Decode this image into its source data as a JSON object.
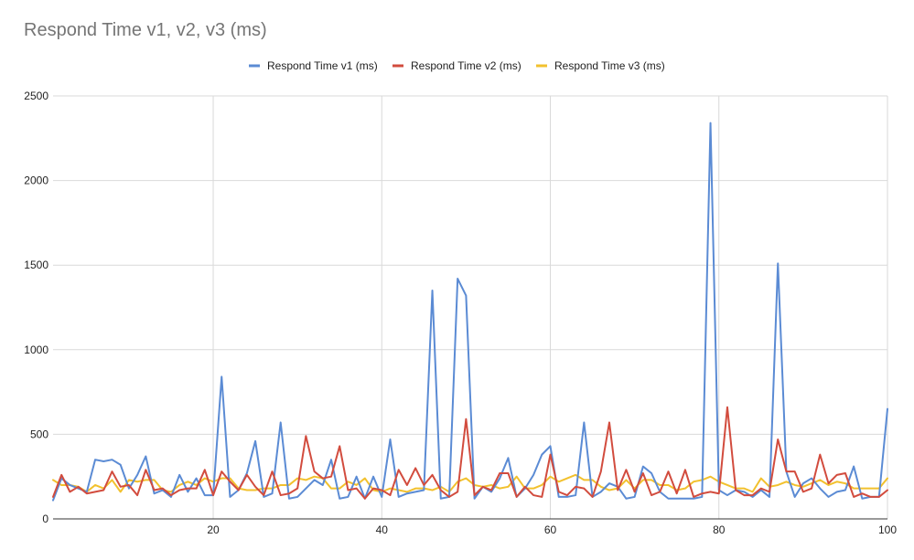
{
  "colors": {
    "v1": "#5b8bd4",
    "v2": "#d24c3e",
    "v3": "#f2c12e",
    "grid": "#d9d9d9",
    "axis": "#333333"
  },
  "chart_data": {
    "type": "line",
    "title": "Respond Time v1, v2, v3 (ms)",
    "xlabel": "",
    "ylabel": "",
    "xlim": [
      1,
      100
    ],
    "ylim": [
      0,
      2500
    ],
    "x_ticks": [
      "20",
      "40",
      "60",
      "80",
      "100"
    ],
    "x_tick_values": [
      20,
      40,
      60,
      80,
      100
    ],
    "y_ticks": [
      "0",
      "500",
      "1000",
      "1500",
      "2000",
      "2500"
    ],
    "y_tick_values": [
      0,
      500,
      1000,
      1500,
      2000,
      2500
    ],
    "legend_position": "top",
    "grid": true,
    "x": [
      1,
      2,
      3,
      4,
      5,
      6,
      7,
      8,
      9,
      10,
      11,
      12,
      13,
      14,
      15,
      16,
      17,
      18,
      19,
      20,
      21,
      22,
      23,
      24,
      25,
      26,
      27,
      28,
      29,
      30,
      31,
      32,
      33,
      34,
      35,
      36,
      37,
      38,
      39,
      40,
      41,
      42,
      43,
      44,
      45,
      46,
      47,
      48,
      49,
      50,
      51,
      52,
      53,
      54,
      55,
      56,
      57,
      58,
      59,
      60,
      61,
      62,
      63,
      64,
      65,
      66,
      67,
      68,
      69,
      70,
      71,
      72,
      73,
      74,
      75,
      76,
      77,
      78,
      79,
      80,
      81,
      82,
      83,
      84,
      85,
      86,
      87,
      88,
      89,
      90,
      91,
      92,
      93,
      94,
      95,
      96,
      97,
      98,
      99,
      100
    ],
    "series": [
      {
        "name": "Respond Time v1 (ms)",
        "values": [
          110,
          240,
          200,
          180,
          160,
          350,
          340,
          350,
          320,
          180,
          260,
          370,
          150,
          170,
          130,
          260,
          160,
          240,
          140,
          140,
          840,
          130,
          170,
          270,
          460,
          130,
          150,
          570,
          120,
          130,
          180,
          230,
          200,
          350,
          120,
          130,
          250,
          120,
          250,
          130,
          470,
          130,
          150,
          160,
          170,
          1350,
          120,
          130,
          1420,
          1320,
          120,
          190,
          160,
          240,
          360,
          130,
          180,
          260,
          380,
          430,
          130,
          130,
          140,
          570,
          130,
          160,
          210,
          190,
          120,
          130,
          310,
          270,
          160,
          120,
          120,
          120,
          120,
          130,
          2340,
          170,
          140,
          170,
          160,
          130,
          170,
          130,
          1510,
          280,
          130,
          210,
          240,
          180,
          130,
          160,
          170,
          310,
          120,
          130,
          130,
          650
        ]
      },
      {
        "name": "Respond Time v2 (ms)",
        "values": [
          130,
          260,
          160,
          190,
          150,
          160,
          170,
          280,
          190,
          200,
          140,
          290,
          170,
          180,
          140,
          170,
          180,
          180,
          290,
          140,
          280,
          220,
          170,
          260,
          190,
          140,
          280,
          140,
          150,
          180,
          490,
          280,
          240,
          250,
          430,
          170,
          180,
          120,
          180,
          170,
          140,
          290,
          200,
          300,
          200,
          260,
          170,
          130,
          160,
          590,
          140,
          190,
          170,
          270,
          270,
          130,
          190,
          140,
          130,
          380,
          160,
          140,
          190,
          180,
          130,
          280,
          570,
          170,
          290,
          160,
          270,
          140,
          160,
          280,
          150,
          290,
          130,
          150,
          160,
          150,
          660,
          170,
          140,
          140,
          180,
          160,
          470,
          280,
          280,
          160,
          180,
          380,
          210,
          260,
          270,
          130,
          150,
          130,
          130,
          170
        ]
      },
      {
        "name": "Respond Time v3 (ms)",
        "values": [
          230,
          200,
          200,
          190,
          160,
          200,
          180,
          230,
          160,
          230,
          220,
          230,
          230,
          170,
          160,
          200,
          220,
          200,
          240,
          220,
          240,
          240,
          180,
          170,
          170,
          180,
          180,
          200,
          200,
          240,
          230,
          250,
          240,
          180,
          180,
          220,
          200,
          240,
          170,
          160,
          180,
          170,
          160,
          180,
          180,
          170,
          190,
          160,
          220,
          240,
          200,
          190,
          200,
          180,
          190,
          250,
          180,
          180,
          200,
          250,
          220,
          240,
          260,
          230,
          230,
          190,
          170,
          180,
          230,
          180,
          230,
          230,
          200,
          200,
          170,
          180,
          220,
          230,
          250,
          220,
          200,
          180,
          180,
          160,
          240,
          190,
          200,
          220,
          200,
          190,
          210,
          230,
          200,
          220,
          210,
          180,
          180,
          180,
          180,
          240
        ]
      }
    ]
  }
}
